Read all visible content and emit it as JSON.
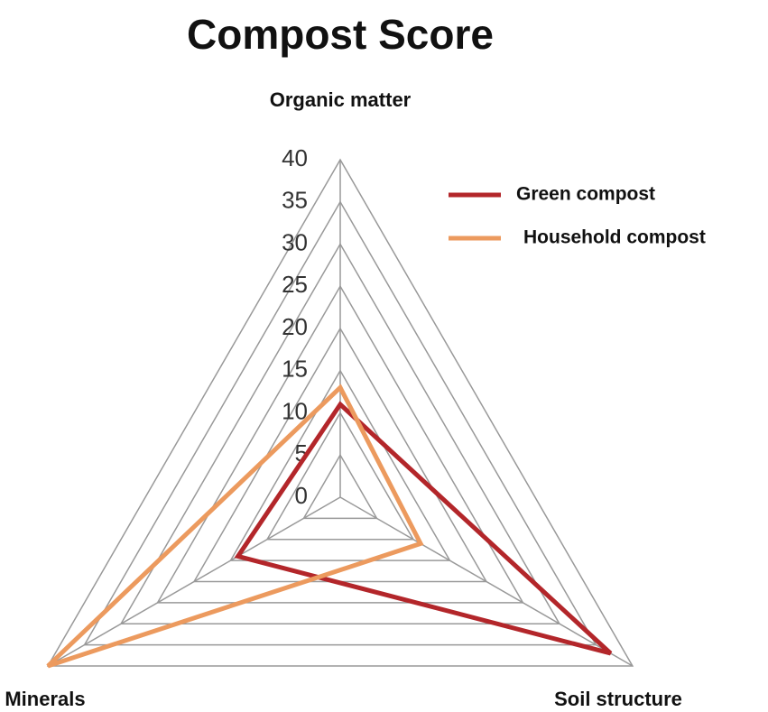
{
  "chart_data": {
    "type": "radar",
    "title": "Compost Score",
    "categories": [
      "Organic matter",
      "Soil structure",
      "Minerals"
    ],
    "series": [
      {
        "name": "Green compost",
        "color": "#b3262a",
        "values": [
          11,
          37,
          14
        ]
      },
      {
        "name": "Household compost",
        "color": "#ec9a5e",
        "values": [
          13,
          11,
          40
        ]
      }
    ],
    "ylim": [
      0,
      40
    ],
    "yticks": [
      0,
      5,
      10,
      15,
      20,
      25,
      30,
      35,
      40
    ],
    "grid": true
  }
}
